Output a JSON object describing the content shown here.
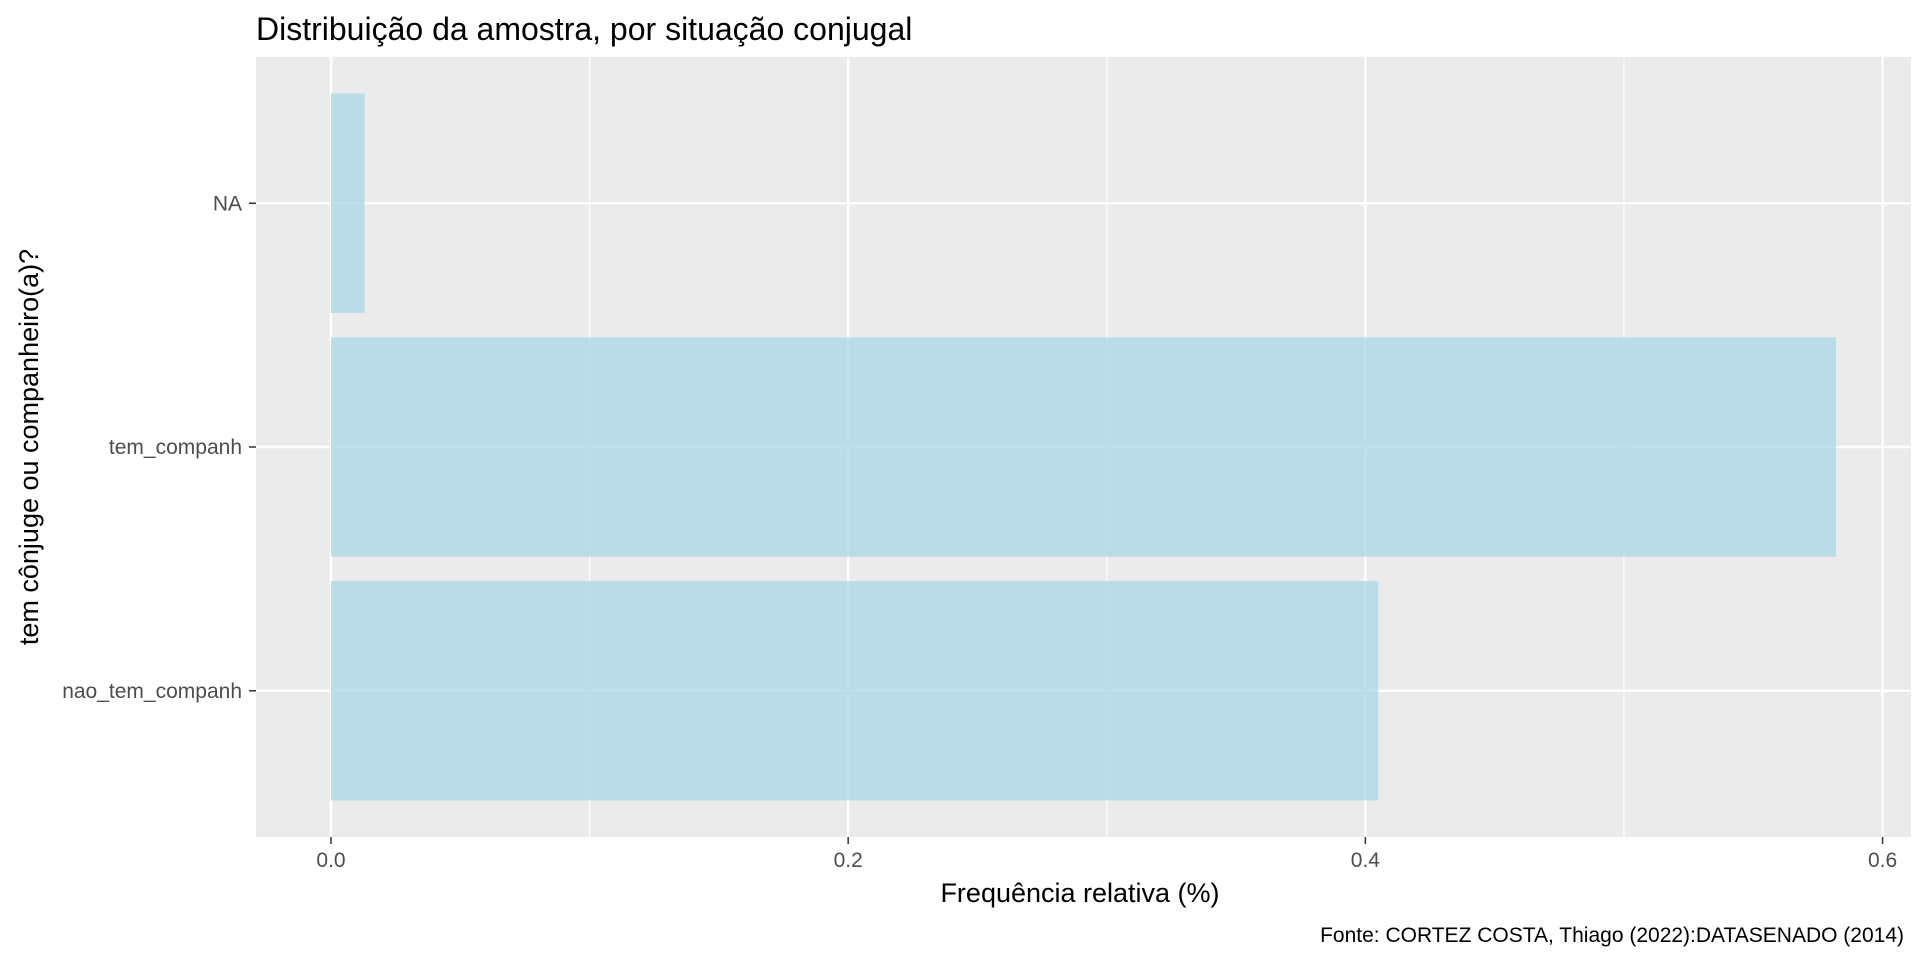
{
  "chart_data": {
    "type": "bar",
    "orientation": "horizontal",
    "title": "Distribuição da amostra, por situação conjugal",
    "xlabel": "Frequência relativa (%)",
    "ylabel": "tem cônjuge ou companheiro(a)?",
    "caption": "Fonte: CORTEZ COSTA, Thiago (2022):DATASENADO (2014)",
    "categories": [
      "nao_tem_companh",
      "tem_companh",
      "NA"
    ],
    "values": [
      0.405,
      0.582,
      0.013
    ],
    "xlim": [
      -0.029,
      0.611
    ],
    "xticks": [
      0.0,
      0.2,
      0.4,
      0.6
    ],
    "xtick_labels": [
      "0.0",
      "0.2",
      "0.4",
      "0.6"
    ],
    "grid": true,
    "legend": "none",
    "colors": {
      "bar": "#add8e6",
      "panel_background": "#ebebeb",
      "grid_major": "#ffffff",
      "tick_text": "#4d4d4d",
      "tick_mark": "#333333"
    }
  }
}
